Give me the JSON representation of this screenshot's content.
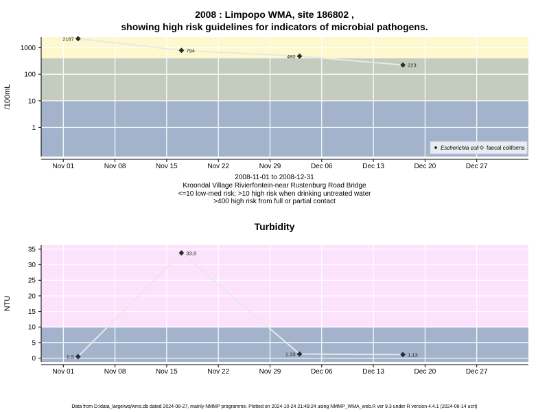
{
  "title_line1": "2008 : Limpopo WMA, site 186802 ,",
  "title_line2": "showing high risk guidelines for indicators of microbial pathogens.",
  "caption": [
    "2008-11-01 to 2008-12-31",
    "Kroondal Village Rivierfontein-near Rustenburg Road Bridge",
    "<=10 low-med risk; >10 high risk when drinking untreated water",
    ">400 high risk from full or partial contact"
  ],
  "turbidity_title": "Turbidity",
  "footer": "Data from D:/data_large/wq/wms.db dated 2024-08-27, mainly NMMP programme. Plotted on 2024-10-24 21:49:24 using NMMP_WMA_web.R ver 9.3 under R version 4.4.1 (2024-06-14 ucrt)",
  "colors": {
    "low_band": "#a3b3cc",
    "mid_band": "#c4ccc0",
    "high_band": "#fdf8ce",
    "turb_high": "#fde2fd",
    "line": "#e8e8e8",
    "point": "#2b2b2b"
  },
  "chart_data": [
    {
      "type": "line",
      "title": "2008 : Limpopo WMA, site 186802 , showing high risk guidelines for indicators of microbial pathogens.",
      "ylabel": "/100mL",
      "yscale": "log",
      "yticks": [
        1,
        10,
        100,
        1000
      ],
      "x_ticks": [
        "Nov 01",
        "Nov 08",
        "Nov 15",
        "Nov 22",
        "Nov 29",
        "Dec 06",
        "Dec 13",
        "Dec 20",
        "Dec 27"
      ],
      "x_tick_dates": [
        "2008-11-01",
        "2008-11-08",
        "2008-11-15",
        "2008-11-22",
        "2008-11-29",
        "2008-12-06",
        "2008-12-13",
        "2008-12-20",
        "2008-12-27"
      ],
      "xlim": [
        "2008-10-29",
        "2009-01-03"
      ],
      "ylim_log10": [
        -1.1,
        3.4
      ],
      "bands": [
        {
          "from": null,
          "to": 10,
          "color": "#a3b3cc"
        },
        {
          "from": 10,
          "to": 400,
          "color": "#c4ccc0"
        },
        {
          "from": 400,
          "to": null,
          "color": "#fdf8ce"
        }
      ],
      "legend_position": "bottom-right",
      "series": [
        {
          "name": "Escherichia coli",
          "marker": "filled-diamond",
          "points": [
            {
              "x": "2008-11-03",
              "y": 2187,
              "label": "2187"
            },
            {
              "x": "2008-11-17",
              "y": 794,
              "label": "794"
            },
            {
              "x": "2008-12-03",
              "y": 480,
              "label": "480"
            },
            {
              "x": "2008-12-17",
              "y": 223,
              "label": "223"
            }
          ]
        },
        {
          "name": "faecal coliforms",
          "marker": "open-diamond",
          "points": []
        }
      ]
    },
    {
      "type": "line",
      "title": "Turbidity",
      "ylabel": "NTU",
      "yticks": [
        0,
        5,
        10,
        15,
        20,
        25,
        30,
        35
      ],
      "ylim": [
        -1.2,
        36.3
      ],
      "x_ticks": [
        "Nov 01",
        "Nov 08",
        "Nov 15",
        "Nov 22",
        "Nov 29",
        "Dec 06",
        "Dec 13",
        "Dec 20",
        "Dec 27"
      ],
      "x_tick_dates": [
        "2008-11-01",
        "2008-11-08",
        "2008-11-15",
        "2008-11-22",
        "2008-11-29",
        "2008-12-06",
        "2008-12-13",
        "2008-12-20",
        "2008-12-27"
      ],
      "xlim": [
        "2008-10-29",
        "2009-01-03"
      ],
      "bands": [
        {
          "from": null,
          "to": 10,
          "color": "#a3b3cc"
        },
        {
          "from": 10,
          "to": null,
          "color": "#fde2fd"
        }
      ],
      "series": [
        {
          "name": "",
          "points": [
            {
              "x": "2008-11-03",
              "y": 0.5,
              "label": "0.5"
            },
            {
              "x": "2008-11-17",
              "y": 33.8,
              "label": "33.8"
            },
            {
              "x": "2008-12-03",
              "y": 1.33,
              "label": "1.33"
            },
            {
              "x": "2008-12-17",
              "y": 1.13,
              "label": "1.13"
            }
          ]
        }
      ]
    }
  ]
}
